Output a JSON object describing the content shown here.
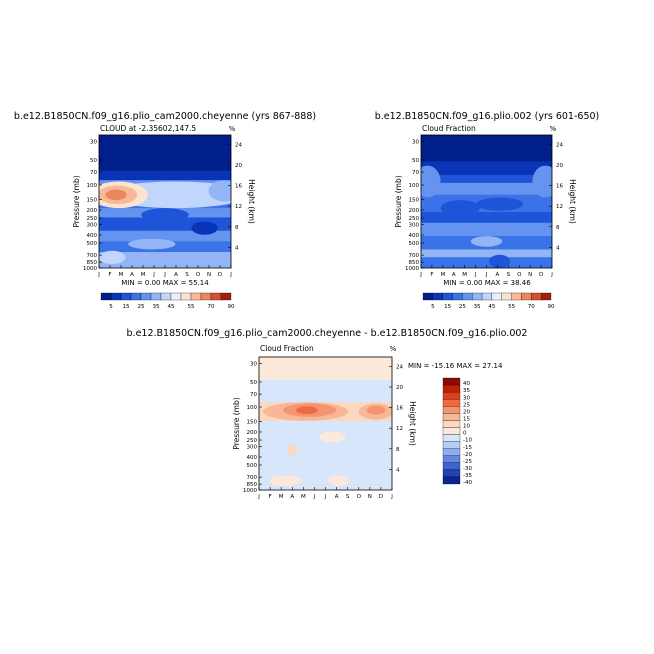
{
  "chart_data": [
    {
      "type": "heatmap",
      "title": "b.e12.B1850CN.f09_g16.plio_cam2000.cheyenne (yrs 867-888)",
      "subtitle": "CLOUD at -2.35602,147.5",
      "unit_label": "%",
      "ylabel": "Pressure (mb)",
      "ylabel_right": "Height (km)",
      "x_ticks": [
        "J",
        "F",
        "M",
        "A",
        "M",
        "J",
        "J",
        "A",
        "S",
        "O",
        "N",
        "D",
        "J"
      ],
      "y_ticks": [
        "30",
        "50",
        "70",
        "100",
        "150",
        "200",
        "250",
        "300",
        "400",
        "500",
        "700",
        "850",
        "1000"
      ],
      "y_ticks_right": [
        "24",
        "20",
        "16",
        "12",
        "8",
        "4"
      ],
      "stats": "MIN =    0.00  MAX =   55.14",
      "legend_labels": [
        "5",
        "15",
        "25",
        "35",
        "45",
        "55",
        "70",
        "90"
      ]
    },
    {
      "type": "heatmap",
      "title": "b.e12.B1850CN.f09_g16.plio.002 (yrs 601-650)",
      "subtitle": "Cloud Fraction",
      "unit_label": "%",
      "ylabel": "Pressure (mb)",
      "ylabel_right": "Height (km)",
      "x_ticks": [
        "J",
        "F",
        "M",
        "A",
        "M",
        "J",
        "J",
        "A",
        "S",
        "O",
        "N",
        "D",
        "J"
      ],
      "y_ticks": [
        "30",
        "50",
        "70",
        "100",
        "150",
        "200",
        "250",
        "300",
        "400",
        "500",
        "700",
        "850",
        "1000"
      ],
      "y_ticks_right": [
        "24",
        "20",
        "16",
        "12",
        "8",
        "4"
      ],
      "stats": "MIN =    0.00  MAX =   38.46",
      "legend_labels": [
        "5",
        "15",
        "25",
        "35",
        "45",
        "55",
        "70",
        "90"
      ]
    },
    {
      "type": "heatmap",
      "title": "b.e12.B1850CN.f09_g16.plio_cam2000.cheyenne - b.e12.B1850CN.f09_g16.plio.002",
      "subtitle": "Cloud Fraction",
      "unit_label": "%",
      "ylabel": "Pressure (mb)",
      "ylabel_right": "Height (km)",
      "x_ticks": [
        "J",
        "F",
        "M",
        "A",
        "M",
        "J",
        "J",
        "A",
        "S",
        "O",
        "N",
        "D",
        "J"
      ],
      "y_ticks": [
        "30",
        "50",
        "70",
        "100",
        "150",
        "200",
        "250",
        "300",
        "400",
        "500",
        "700",
        "850",
        "1000"
      ],
      "y_ticks_right": [
        "24",
        "20",
        "16",
        "12",
        "8",
        "4"
      ],
      "stats": "MIN =  -15.16  MAX =   27.14",
      "legend_labels": [
        "40",
        "35",
        "30",
        "25",
        "20",
        "15",
        "10",
        "0",
        "-10",
        "-15",
        "-20",
        "-25",
        "-30",
        "-35",
        "-40"
      ]
    }
  ],
  "colors": {
    "seq_scale": [
      "#001f8a",
      "#0a34b8",
      "#1e54d8",
      "#3a72e8",
      "#6593f0",
      "#92b5f5",
      "#c0d6fa",
      "#e8f0fc",
      "#fbe3d0",
      "#f6b896",
      "#ec8660",
      "#d5502f",
      "#a61e12"
    ],
    "div_scale": [
      "#8a0c00",
      "#c02005",
      "#e04018",
      "#f06a40",
      "#f49470",
      "#f8b898",
      "#fbd8bf",
      "#fde9da",
      "#d8e6fb",
      "#b5cdf7",
      "#8daef0",
      "#6088e3",
      "#3f63d2",
      "#2442b5",
      "#0d2494"
    ]
  }
}
